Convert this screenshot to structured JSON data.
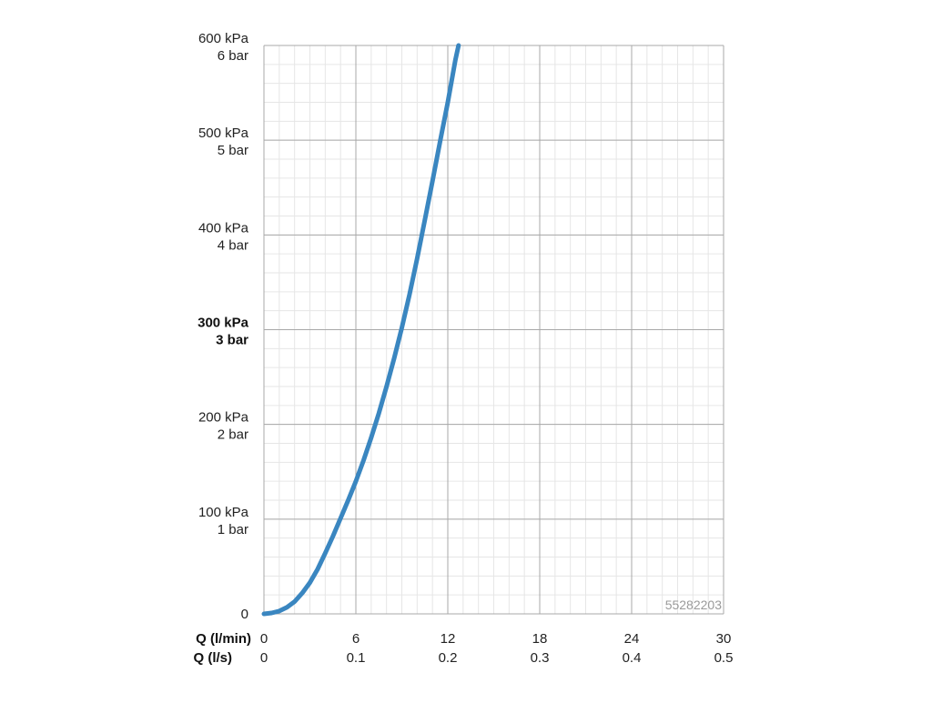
{
  "chart_data": {
    "type": "line",
    "title": "",
    "watermark_code": "55282203",
    "x_axis_primary": {
      "label": "Q (l/min)",
      "range": [
        0,
        30
      ],
      "ticks": [
        "0",
        "6",
        "12",
        "18",
        "24",
        "30"
      ]
    },
    "x_axis_secondary": {
      "label": "Q (l/s)",
      "ticks": [
        "0",
        "0.1",
        "0.2",
        "0.3",
        "0.4",
        "0.5"
      ]
    },
    "y_axis": {
      "range_kpa": [
        0,
        600
      ],
      "ticks": [
        {
          "value": 0,
          "kpa": "0",
          "bar": ""
        },
        {
          "value": 100,
          "kpa": "100 kPa",
          "bar": "1 bar",
          "bold": false
        },
        {
          "value": 200,
          "kpa": "200 kPa",
          "bar": "2 bar",
          "bold": false
        },
        {
          "value": 300,
          "kpa": "300 kPa",
          "bar": "3 bar",
          "bold": true
        },
        {
          "value": 400,
          "kpa": "400 kPa",
          "bar": "4 bar",
          "bold": false
        },
        {
          "value": 500,
          "kpa": "500 kPa",
          "bar": "5 bar",
          "bold": false
        },
        {
          "value": 600,
          "kpa": "600 kPa",
          "bar": "6 bar",
          "bold": false
        }
      ]
    },
    "grid": true,
    "series": [
      {
        "color": "#3a86c0",
        "points": [
          [
            0,
            0
          ],
          [
            0.5,
            1
          ],
          [
            1,
            3
          ],
          [
            1.5,
            7
          ],
          [
            2,
            13
          ],
          [
            2.5,
            22
          ],
          [
            3,
            33
          ],
          [
            3.5,
            47
          ],
          [
            4,
            64
          ],
          [
            4.5,
            82
          ],
          [
            5,
            101
          ],
          [
            5.5,
            120
          ],
          [
            6,
            140
          ],
          [
            6.5,
            162
          ],
          [
            7,
            186
          ],
          [
            7.5,
            212
          ],
          [
            8,
            240
          ],
          [
            8.5,
            270
          ],
          [
            9,
            302
          ],
          [
            9.5,
            337
          ],
          [
            10,
            375
          ],
          [
            10.5,
            416
          ],
          [
            11,
            457
          ],
          [
            11.5,
            499
          ],
          [
            12,
            540
          ],
          [
            12.5,
            585
          ],
          [
            12.7,
            600
          ]
        ]
      }
    ]
  }
}
